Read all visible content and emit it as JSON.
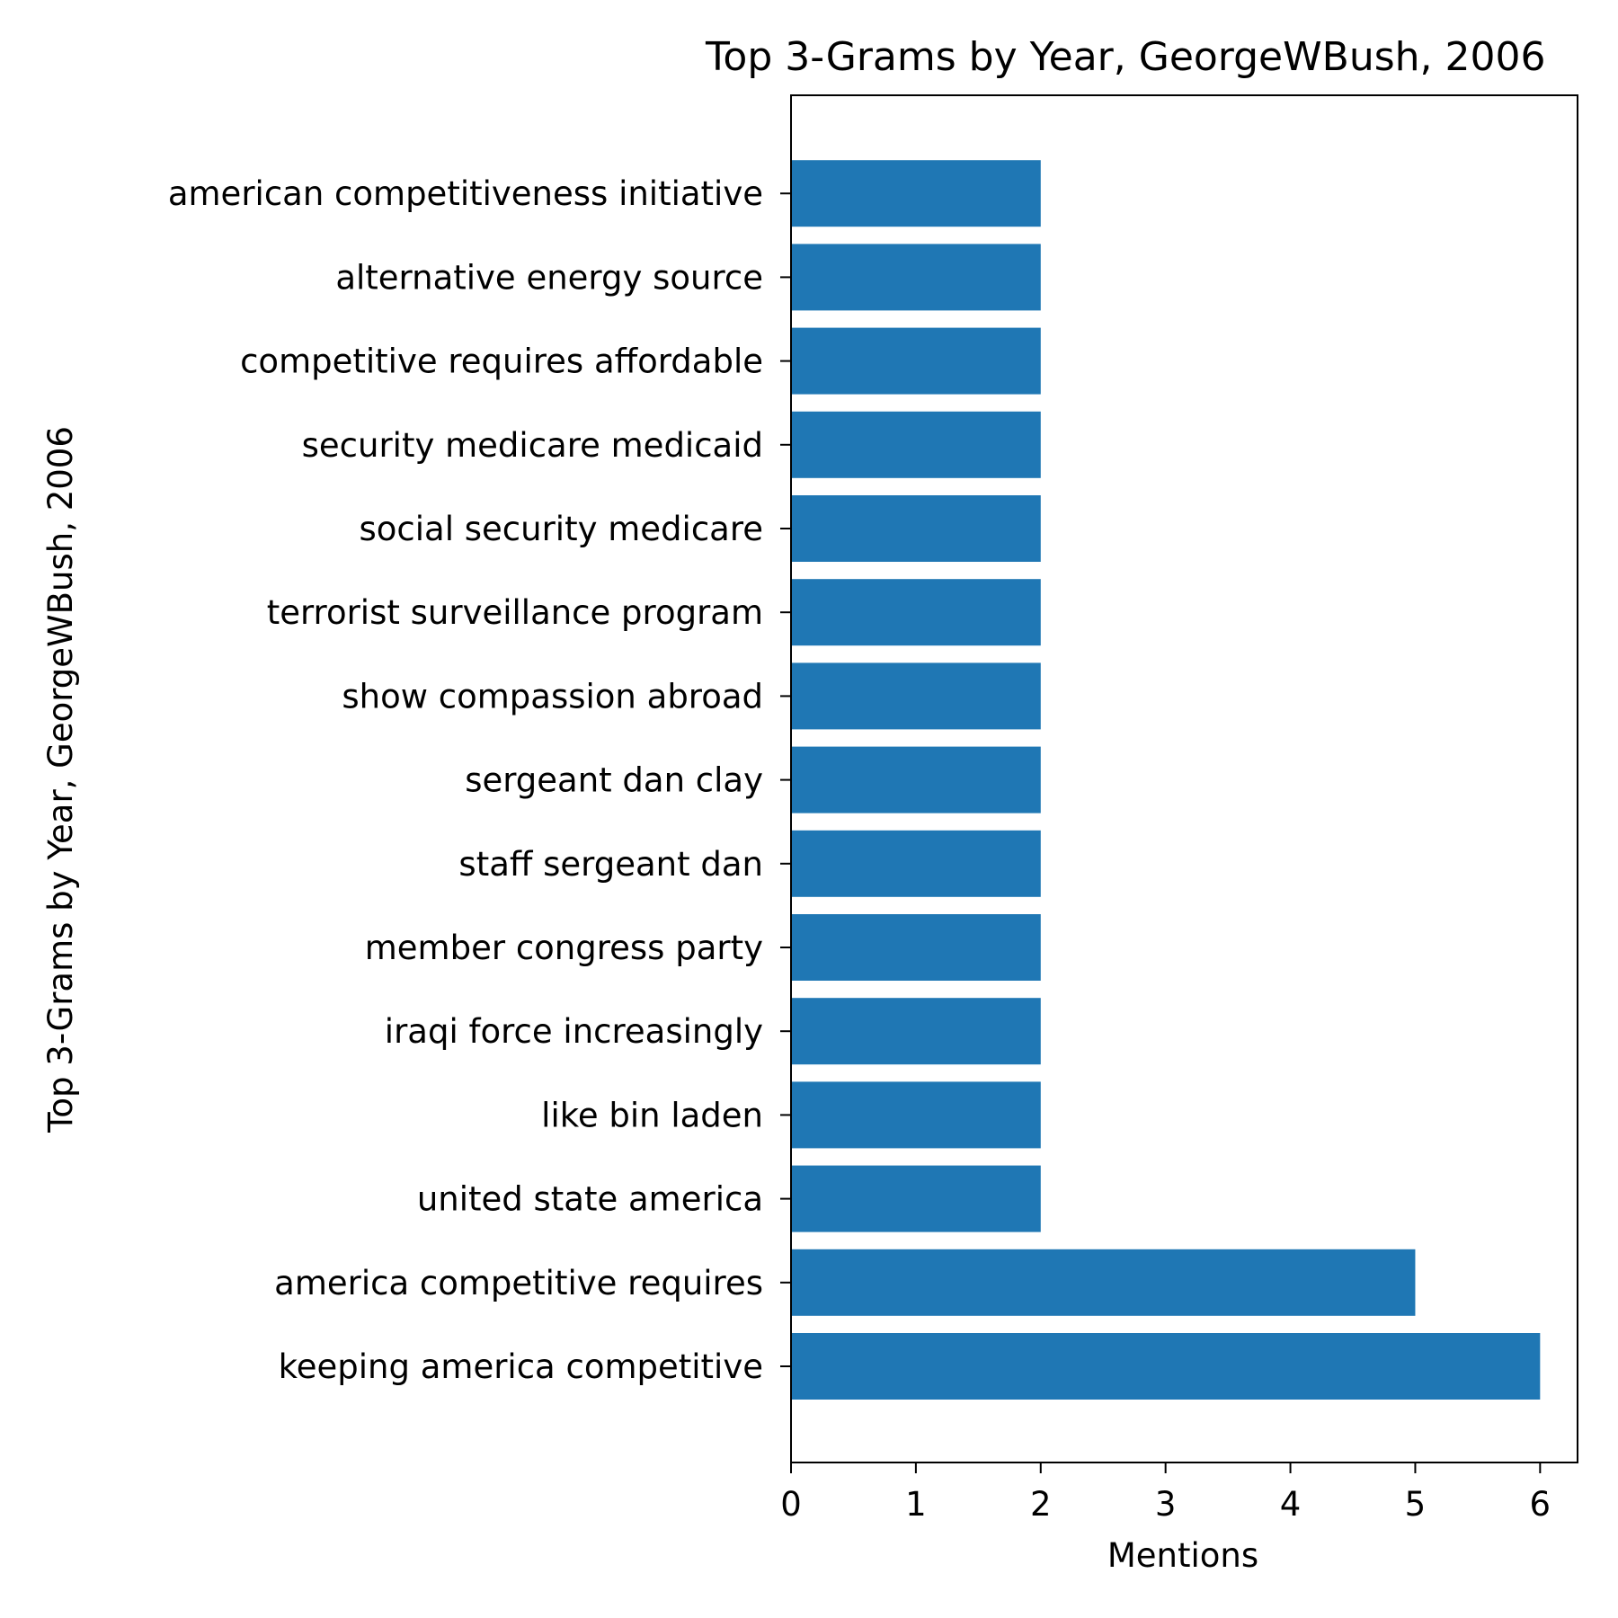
{
  "chart_data": {
    "type": "bar",
    "orientation": "horizontal",
    "title": "Top 3-Grams by Year, GeorgeWBush, 2006",
    "xlabel": "Mentions",
    "ylabel": "Top 3-Grams by Year, GeorgeWBush, 2006",
    "categories": [
      "keeping america competitive",
      "america competitive requires",
      "united state america",
      "like bin laden",
      "iraqi force increasingly",
      "member congress party",
      "staff sergeant dan",
      "sergeant dan clay",
      "show compassion abroad",
      "terrorist surveillance program",
      "social security medicare",
      "security medicare medicaid",
      "competitive requires affordable",
      "alternative energy source",
      "american competitiveness initiative"
    ],
    "values": [
      6,
      5,
      2,
      2,
      2,
      2,
      2,
      2,
      2,
      2,
      2,
      2,
      2,
      2,
      2
    ],
    "xlim": [
      0,
      6.3
    ],
    "xticks": [
      0,
      1,
      2,
      3,
      4,
      5,
      6
    ],
    "grid": false,
    "legend": null,
    "bar_color": "#1f77b4"
  }
}
